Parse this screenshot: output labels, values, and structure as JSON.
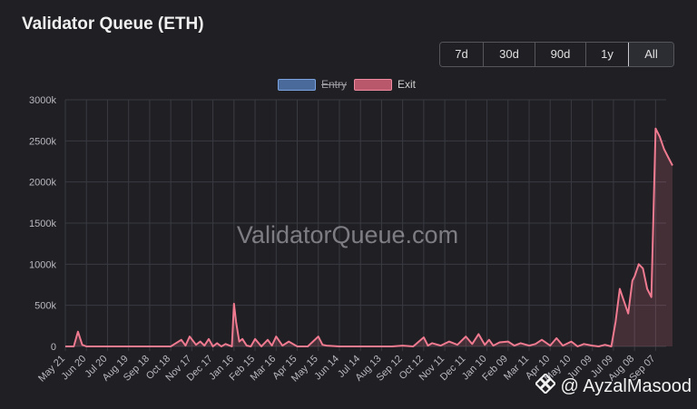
{
  "header": {
    "title": "Validator Queue (ETH)"
  },
  "range_buttons": [
    {
      "label": "7d",
      "active": false
    },
    {
      "label": "30d",
      "active": false
    },
    {
      "label": "90d",
      "active": false
    },
    {
      "label": "1y",
      "active": false
    },
    {
      "label": "All",
      "active": true
    }
  ],
  "legend": {
    "entry": "Entry",
    "exit": "Exit"
  },
  "watermark": "ValidatorQueue.com",
  "credit": "@ AyzalMasood",
  "colors": {
    "exit_line": "#f07a90",
    "entry_line": "#6f9be0",
    "grid": "#3a3a42",
    "background": "#1f1f24"
  },
  "chart_data": {
    "type": "line",
    "title": "Validator Queue (ETH)",
    "xlabel": "",
    "ylabel": "",
    "ylim": [
      0,
      3000000
    ],
    "y_ticks": [
      "0",
      "500k",
      "1000k",
      "1500k",
      "2000k",
      "2500k",
      "3000k"
    ],
    "x_tick_labels": [
      "May 21",
      "Jun 20",
      "Jul 20",
      "Aug 19",
      "Sep 18",
      "Oct 18",
      "Nov 17",
      "Dec 17",
      "Jan 16",
      "Feb 15",
      "Mar 16",
      "Apr 15",
      "May 15",
      "Jun 14",
      "Jul 14",
      "Aug 13",
      "Sep 12",
      "Oct 12",
      "Nov 11",
      "Dec 11",
      "Jan 10",
      "Feb 09",
      "Mar 11",
      "Apr 10",
      "May 10",
      "Jun 09",
      "Jul 09",
      "Aug 08",
      "Sep 07"
    ],
    "legend_position": "top-center",
    "grid": true,
    "series": [
      {
        "name": "Exit",
        "visible": true,
        "x_index": [
          0,
          0.4,
          0.6,
          0.8,
          1.0,
          2,
          3,
          4,
          5,
          5.5,
          5.7,
          5.9,
          6.2,
          6.4,
          6.6,
          6.8,
          7.0,
          7.2,
          7.4,
          7.6,
          7.9,
          8.0,
          8.1,
          8.25,
          8.4,
          8.6,
          8.8,
          9.0,
          9.3,
          9.6,
          9.8,
          10.0,
          10.3,
          10.6,
          11,
          11.5,
          12,
          12.2,
          12.4,
          13,
          13.5,
          14,
          14.5,
          15,
          15.5,
          16,
          16.5,
          17.0,
          17.2,
          17.4,
          17.8,
          18.2,
          18.6,
          19.0,
          19.3,
          19.6,
          19.9,
          20.1,
          20.3,
          20.6,
          21.0,
          21.3,
          21.6,
          22.0,
          22.3,
          22.6,
          23.0,
          23.3,
          23.6,
          24.0,
          24.3,
          24.6,
          25.0,
          25.3,
          25.6,
          25.9,
          26.1,
          26.3,
          26.5,
          26.7,
          26.9,
          27.0,
          27.2,
          27.4,
          27.6,
          27.8,
          28.0,
          28.2,
          28.4,
          28.6,
          28.8
        ],
        "values": [
          0,
          0,
          180000,
          20000,
          0,
          0,
          0,
          0,
          0,
          80000,
          10000,
          120000,
          20000,
          60000,
          10000,
          90000,
          0,
          40000,
          0,
          30000,
          0,
          520000,
          300000,
          60000,
          90000,
          10000,
          0,
          90000,
          0,
          80000,
          10000,
          120000,
          10000,
          60000,
          0,
          0,
          120000,
          20000,
          10000,
          0,
          0,
          0,
          0,
          0,
          0,
          10000,
          0,
          110000,
          10000,
          40000,
          10000,
          60000,
          20000,
          120000,
          30000,
          150000,
          20000,
          80000,
          10000,
          50000,
          60000,
          10000,
          40000,
          10000,
          30000,
          80000,
          10000,
          100000,
          10000,
          60000,
          0,
          30000,
          10000,
          0,
          20000,
          0,
          300000,
          700000,
          550000,
          400000,
          800000,
          850000,
          1000000,
          950000,
          700000,
          600000,
          2650000,
          2550000,
          2400000,
          2300000,
          2200000
        ]
      },
      {
        "name": "Entry",
        "visible": false,
        "x_index": [],
        "values": []
      }
    ]
  }
}
